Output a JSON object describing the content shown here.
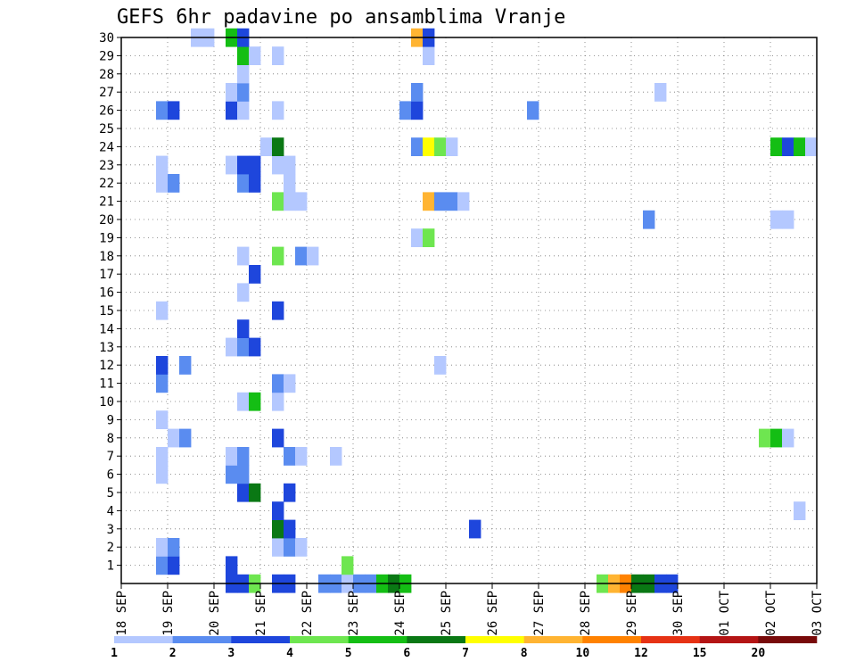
{
  "chart_data": {
    "type": "heatmap",
    "title": "GEFS 6hr padavine po ansamblima Vranje",
    "x_labels": [
      "18 SEP",
      "19 SEP",
      "20 SEP",
      "21 SEP",
      "22 SEP",
      "23 SEP",
      "24 SEP",
      "25 SEP",
      "26 SEP",
      "27 SEP",
      "28 SEP",
      "29 SEP",
      "30 SEP",
      "01 OCT",
      "02 OCT",
      "03 OCT"
    ],
    "y_labels": [
      "1",
      "2",
      "3",
      "4",
      "5",
      "6",
      "7",
      "8",
      "9",
      "10",
      "11",
      "12",
      "13",
      "14",
      "15",
      "16",
      "17",
      "18",
      "19",
      "20",
      "21",
      "22",
      "23",
      "24",
      "25",
      "26",
      "27",
      "28",
      "29",
      "30"
    ],
    "x_range": [
      "18 SEP 00Z",
      "03 OCT 00Z"
    ],
    "y_range": [
      0,
      30
    ],
    "time_step_hours": 6,
    "grid": true,
    "colorbar": {
      "position": "bottom",
      "labels": [
        "1",
        "2",
        "3",
        "4",
        "5",
        "6",
        "7",
        "8",
        "10",
        "12",
        "15",
        "20"
      ],
      "colors": [
        "#b4c8ff",
        "#5a8cf0",
        "#1e46dc",
        "#6ee650",
        "#14be14",
        "#0a7814",
        "#ffff00",
        "#ffb432",
        "#ff8200",
        "#e63214",
        "#b41414",
        "#780a0a"
      ]
    },
    "cells": [
      [
        0,
        9,
        3
      ],
      [
        0,
        10,
        3
      ],
      [
        0,
        11,
        4
      ],
      [
        0,
        13,
        3
      ],
      [
        0,
        14,
        3
      ],
      [
        0,
        17,
        2
      ],
      [
        0,
        18,
        2
      ],
      [
        0,
        19,
        1
      ],
      [
        0,
        20,
        2
      ],
      [
        0,
        21,
        2
      ],
      [
        0,
        22,
        5
      ],
      [
        0,
        23,
        6
      ],
      [
        0,
        24,
        5
      ],
      [
        0,
        41,
        4
      ],
      [
        0,
        42,
        8
      ],
      [
        0,
        43,
        9
      ],
      [
        0,
        44,
        6
      ],
      [
        0,
        45,
        6
      ],
      [
        0,
        46,
        3
      ],
      [
        0,
        47,
        3
      ],
      [
        1,
        3,
        2
      ],
      [
        1,
        4,
        3
      ],
      [
        1,
        9,
        3
      ],
      [
        1,
        19,
        4
      ],
      [
        2,
        3,
        1
      ],
      [
        2,
        4,
        2
      ],
      [
        2,
        13,
        1
      ],
      [
        2,
        14,
        2
      ],
      [
        2,
        15,
        1
      ],
      [
        3,
        13,
        6
      ],
      [
        3,
        14,
        3
      ],
      [
        3,
        30,
        3
      ],
      [
        4,
        13,
        3
      ],
      [
        4,
        58,
        1
      ],
      [
        5,
        10,
        3
      ],
      [
        5,
        11,
        6
      ],
      [
        5,
        14,
        3
      ],
      [
        6,
        3,
        1
      ],
      [
        6,
        9,
        2
      ],
      [
        6,
        10,
        2
      ],
      [
        7,
        3,
        1
      ],
      [
        7,
        9,
        1
      ],
      [
        7,
        10,
        2
      ],
      [
        7,
        14,
        2
      ],
      [
        7,
        15,
        1
      ],
      [
        7,
        18,
        1
      ],
      [
        8,
        4,
        1
      ],
      [
        8,
        5,
        2
      ],
      [
        8,
        13,
        3
      ],
      [
        8,
        55,
        4
      ],
      [
        8,
        56,
        5
      ],
      [
        8,
        57,
        1
      ],
      [
        9,
        3,
        1
      ],
      [
        10,
        10,
        1
      ],
      [
        10,
        11,
        5
      ],
      [
        10,
        13,
        1
      ],
      [
        11,
        3,
        2
      ],
      [
        11,
        13,
        2
      ],
      [
        11,
        14,
        1
      ],
      [
        12,
        3,
        3
      ],
      [
        12,
        5,
        2
      ],
      [
        12,
        27,
        1
      ],
      [
        13,
        9,
        1
      ],
      [
        13,
        10,
        2
      ],
      [
        13,
        11,
        3
      ],
      [
        14,
        10,
        3
      ],
      [
        15,
        3,
        1
      ],
      [
        15,
        13,
        3
      ],
      [
        16,
        10,
        1
      ],
      [
        17,
        11,
        3
      ],
      [
        18,
        10,
        1
      ],
      [
        18,
        13,
        4
      ],
      [
        18,
        15,
        2
      ],
      [
        18,
        16,
        1
      ],
      [
        19,
        25,
        1
      ],
      [
        19,
        26,
        4
      ],
      [
        20,
        45,
        2
      ],
      [
        20,
        56,
        1
      ],
      [
        20,
        57,
        1
      ],
      [
        21,
        13,
        4
      ],
      [
        21,
        14,
        1
      ],
      [
        21,
        15,
        1
      ],
      [
        21,
        26,
        8
      ],
      [
        21,
        27,
        2
      ],
      [
        21,
        28,
        2
      ],
      [
        21,
        29,
        1
      ],
      [
        22,
        3,
        1
      ],
      [
        22,
        4,
        2
      ],
      [
        22,
        10,
        2
      ],
      [
        22,
        11,
        3
      ],
      [
        22,
        14,
        1
      ],
      [
        23,
        3,
        1
      ],
      [
        23,
        9,
        1
      ],
      [
        23,
        10,
        3
      ],
      [
        23,
        11,
        3
      ],
      [
        23,
        13,
        1
      ],
      [
        23,
        14,
        1
      ],
      [
        24,
        12,
        1
      ],
      [
        24,
        13,
        6
      ],
      [
        24,
        25,
        2
      ],
      [
        24,
        26,
        7
      ],
      [
        24,
        27,
        4
      ],
      [
        24,
        28,
        1
      ],
      [
        24,
        56,
        5
      ],
      [
        24,
        57,
        3
      ],
      [
        24,
        58,
        5
      ],
      [
        24,
        59,
        1
      ],
      [
        26,
        3,
        2
      ],
      [
        26,
        4,
        3
      ],
      [
        26,
        9,
        3
      ],
      [
        26,
        10,
        1
      ],
      [
        26,
        13,
        1
      ],
      [
        26,
        24,
        2
      ],
      [
        26,
        25,
        3
      ],
      [
        26,
        35,
        2
      ],
      [
        27,
        9,
        1
      ],
      [
        27,
        10,
        2
      ],
      [
        27,
        25,
        2
      ],
      [
        27,
        46,
        1
      ],
      [
        28,
        10,
        1
      ],
      [
        29,
        10,
        5
      ],
      [
        29,
        11,
        1
      ],
      [
        29,
        13,
        1
      ],
      [
        29,
        26,
        1
      ],
      [
        30,
        6,
        1
      ],
      [
        30,
        7,
        1
      ],
      [
        30,
        9,
        5
      ],
      [
        30,
        10,
        3
      ],
      [
        30,
        25,
        8
      ],
      [
        30,
        26,
        3
      ]
    ]
  }
}
